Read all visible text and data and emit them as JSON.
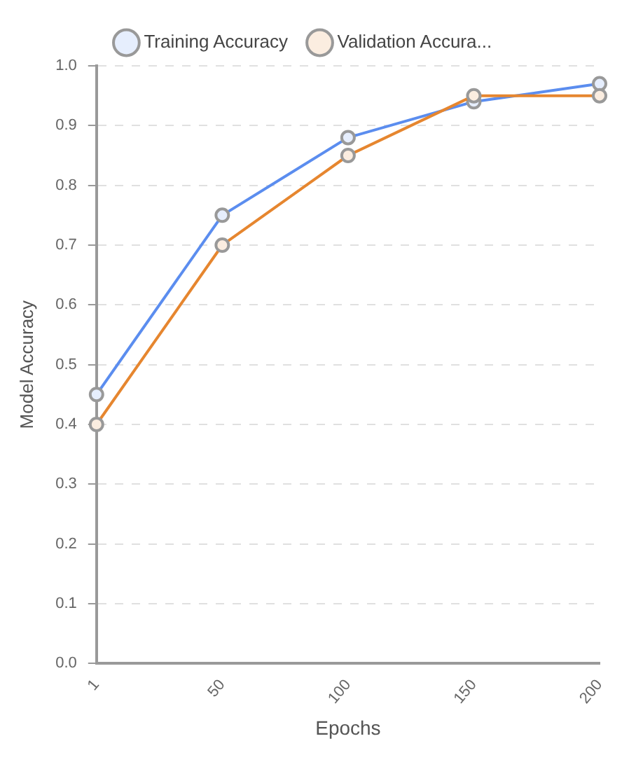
{
  "chart_data": {
    "type": "line",
    "xlabel": "Epochs",
    "ylabel": "Model Accuracy",
    "categories": [
      "1",
      "50",
      "100",
      "150",
      "200"
    ],
    "series": [
      {
        "name": "Training Accuracy",
        "color": "#5b8def",
        "values": [
          0.45,
          0.75,
          0.88,
          0.94,
          0.97
        ]
      },
      {
        "name": "Validation Accura...",
        "color": "#e6862f",
        "values": [
          0.4,
          0.7,
          0.85,
          0.95,
          0.95
        ]
      }
    ],
    "ylim": [
      0,
      1
    ],
    "yticks": [
      {
        "value": 0,
        "label": "0.0"
      },
      0.1,
      0.2,
      0.3,
      0.4,
      0.5,
      0.6,
      0.7,
      0.8,
      0.9,
      {
        "value": 1,
        "label": "1.0"
      }
    ],
    "grid": "y",
    "legend": "top",
    "marker": "circle",
    "line_style": "solid"
  }
}
